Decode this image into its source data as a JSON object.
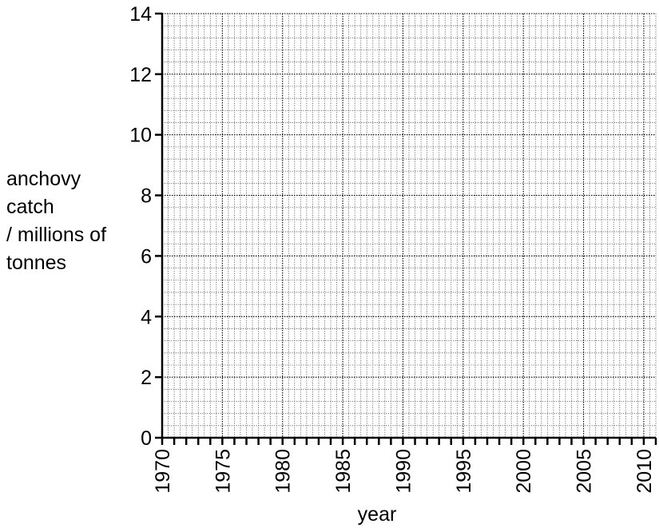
{
  "chart_data": {
    "type": "line",
    "title": "",
    "xlabel": "year",
    "ylabel_lines": [
      "anchovy",
      "catch",
      "/ millions of",
      "tonnes"
    ],
    "xlim": [
      1970,
      2011
    ],
    "ylim": [
      0,
      14
    ],
    "x_ticks": [
      "1970",
      "1975",
      "1980",
      "1985",
      "1990",
      "1995",
      "2000",
      "2005",
      "2010"
    ],
    "y_ticks": [
      "0",
      "2",
      "4",
      "6",
      "8",
      "10",
      "12",
      "14"
    ],
    "x_minor_step": 1,
    "y_minor_step": 0.4,
    "grid": true,
    "series": []
  }
}
